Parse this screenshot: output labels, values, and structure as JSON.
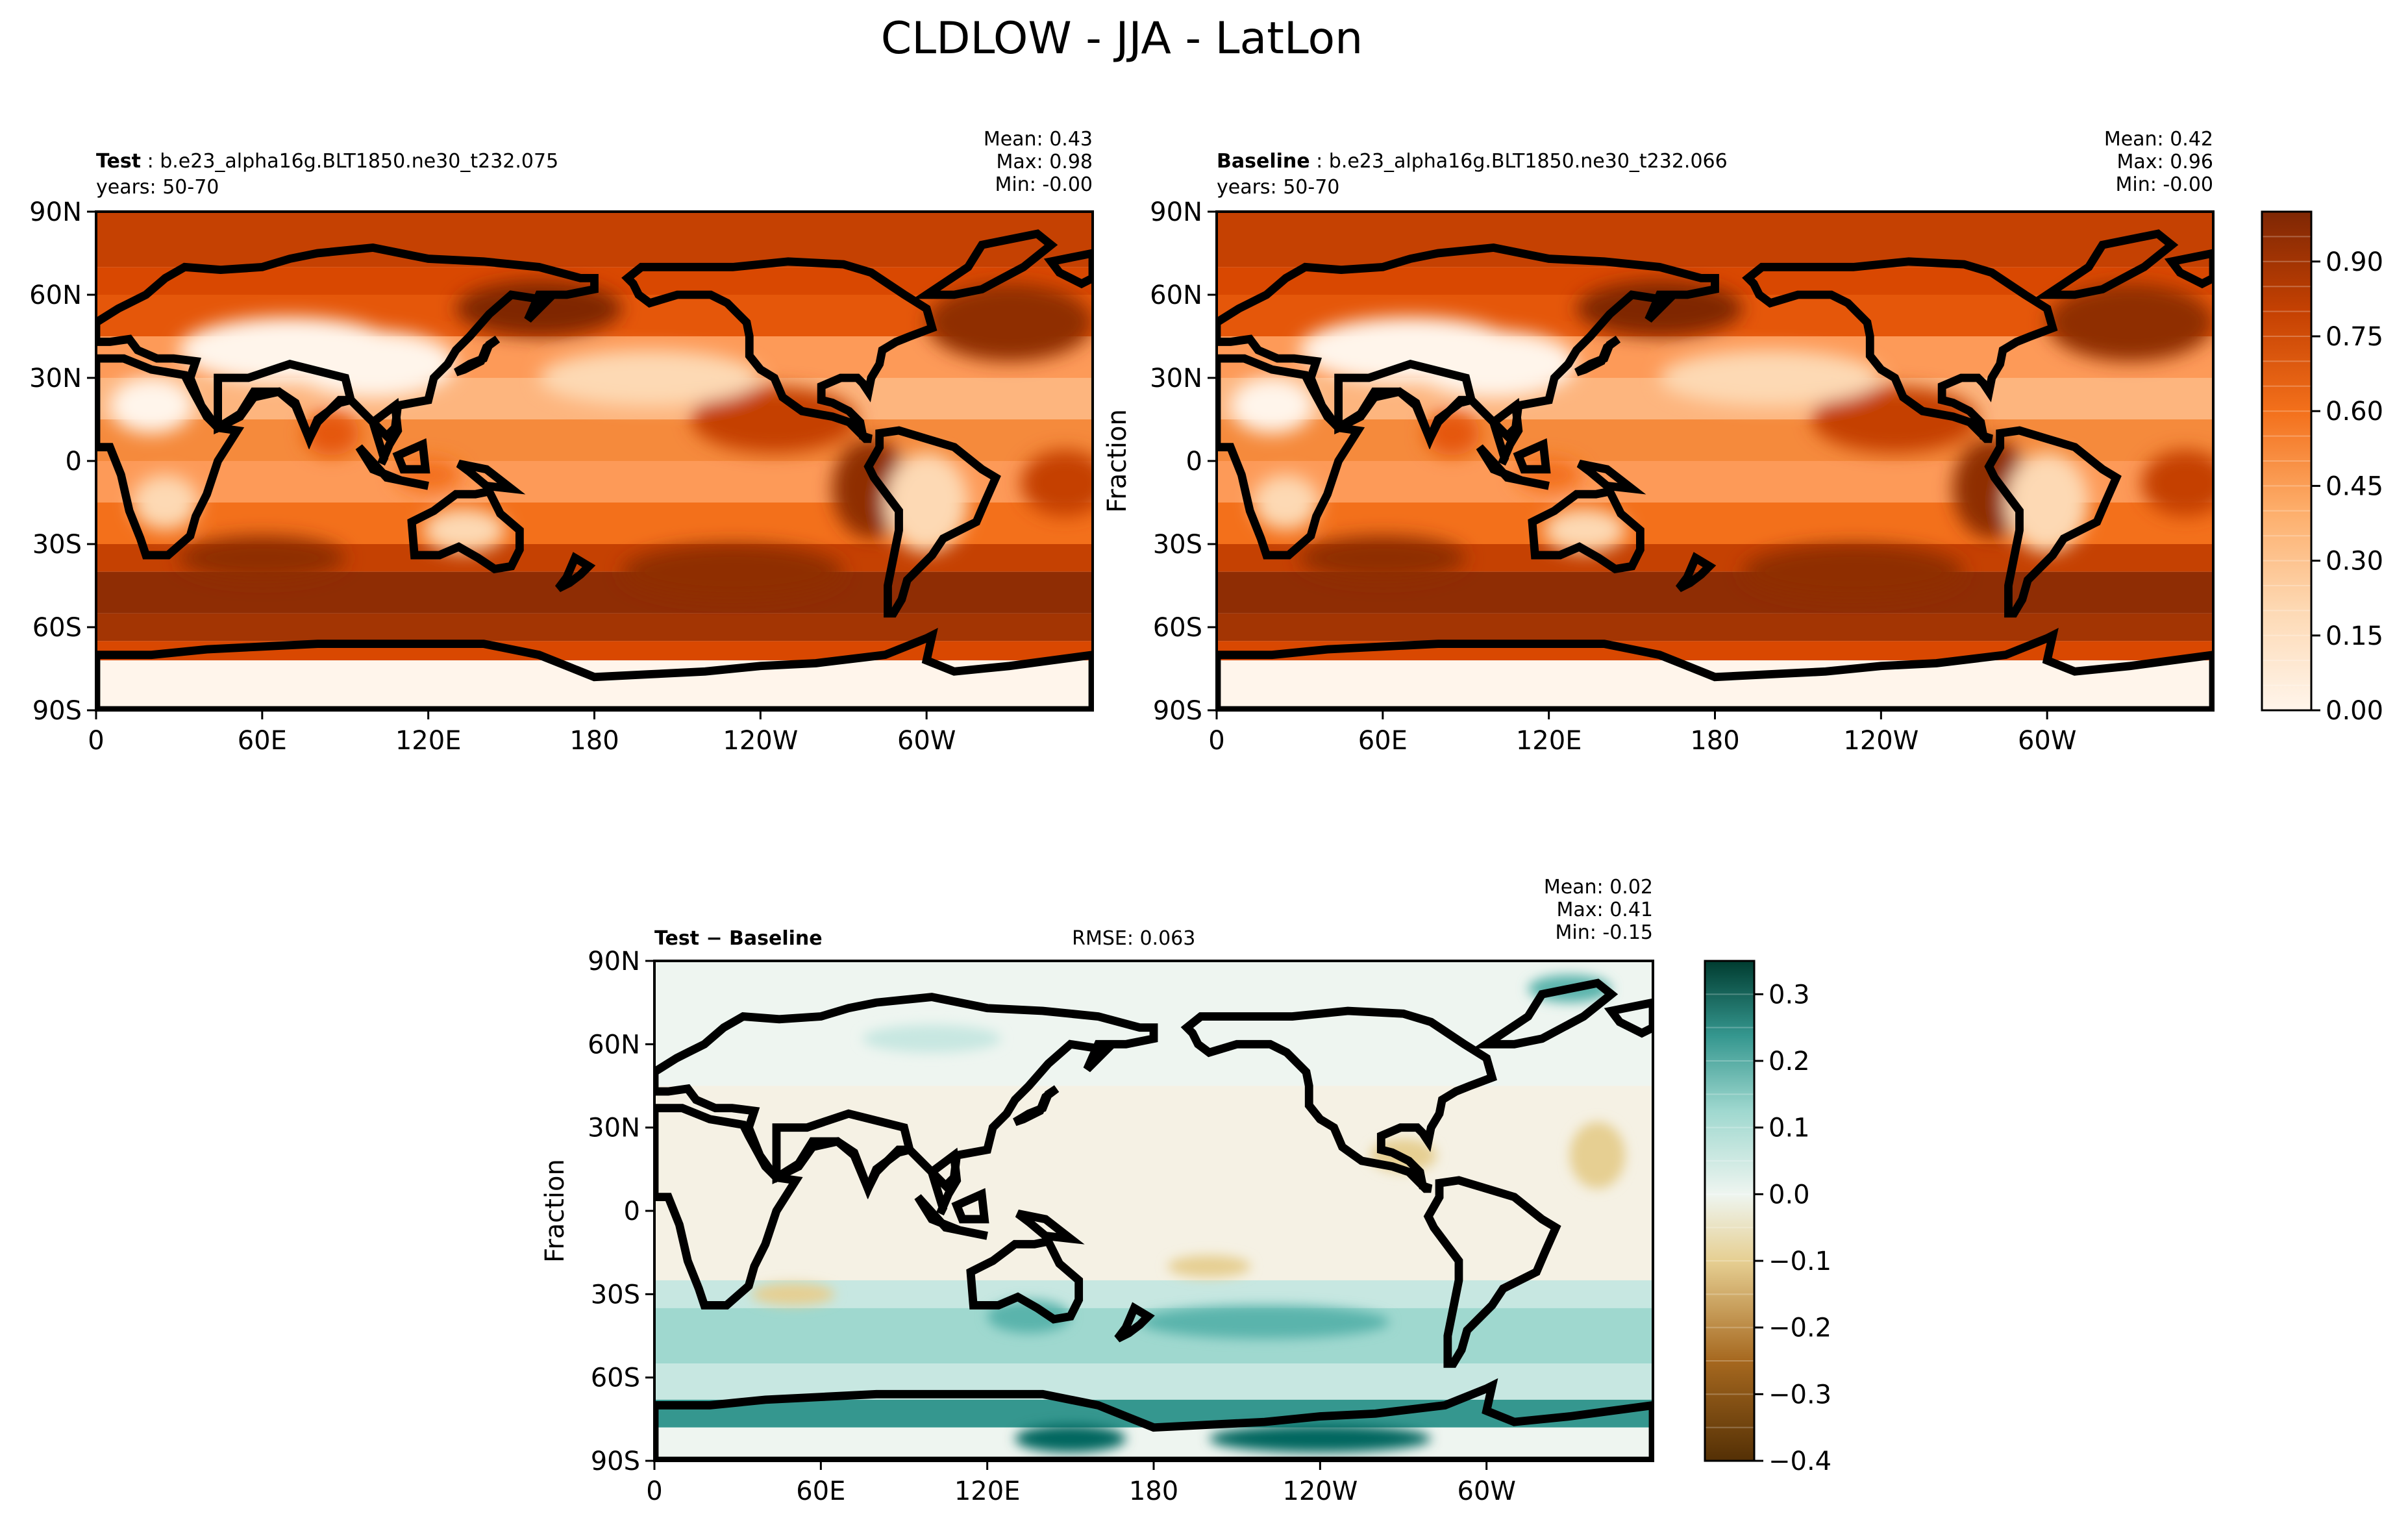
{
  "figure": {
    "title": "CLDLOW - JJA - LatLon"
  },
  "ticks": {
    "lon": [
      "0",
      "60E",
      "120E",
      "180",
      "120W",
      "60W"
    ],
    "lat": [
      "90N",
      "60N",
      "30N",
      "0",
      "30S",
      "60S",
      "90S"
    ]
  },
  "chart_data": [
    {
      "type": "heatmap",
      "panel": "test",
      "header_bold": "Test",
      "header_case": "b.e23_alpha16g.BLT1850.ne30_t232.075",
      "years": "years: 50-70",
      "stats": {
        "mean": "Mean:  0.43",
        "max": "Max:  0.98",
        "min": "Min: -0.00"
      },
      "ylabel": "",
      "xlim": [
        0,
        360
      ],
      "ylim": [
        -90,
        90
      ],
      "colormap": "Oranges",
      "value_range": [
        0,
        1
      ]
    },
    {
      "type": "heatmap",
      "panel": "baseline",
      "header_bold": "Baseline",
      "header_case": "b.e23_alpha16g.BLT1850.ne30_t232.066",
      "years": "years: 50-70",
      "stats": {
        "mean": "Mean:  0.42",
        "max": "Max:  0.96",
        "min": "Min: -0.00"
      },
      "ylabel": "Fraction",
      "xlim": [
        0,
        360
      ],
      "ylim": [
        -90,
        90
      ],
      "colormap": "Oranges",
      "value_range": [
        0,
        1
      ],
      "colorbar": {
        "range": [
          0,
          1
        ],
        "levels": 20,
        "ticks": [
          0.0,
          0.15,
          0.3,
          0.45,
          0.6,
          0.75,
          0.9
        ],
        "tick_labels": [
          "0.00",
          "0.15",
          "0.30",
          "0.45",
          "0.60",
          "0.75",
          "0.90"
        ]
      }
    },
    {
      "type": "heatmap",
      "panel": "diff",
      "header_bold": "Test − Baseline",
      "rmse": "RMSE: 0.063",
      "stats": {
        "mean": "Mean:  0.02",
        "max": "Max:  0.41",
        "min": "Min: -0.15"
      },
      "ylabel": "Fraction",
      "xlim": [
        0,
        360
      ],
      "ylim": [
        -90,
        90
      ],
      "colormap": "BrBG",
      "value_range": [
        -0.4,
        0.35
      ],
      "colorbar": {
        "range": [
          -0.4,
          0.35
        ],
        "levels": 15,
        "ticks": [
          -0.4,
          -0.3,
          -0.2,
          -0.1,
          0.0,
          0.1,
          0.2,
          0.3
        ],
        "tick_labels": [
          "−0.4",
          "−0.3",
          "−0.2",
          "−0.1",
          "0.0",
          "0.1",
          "0.2",
          "0.3"
        ]
      }
    }
  ],
  "colors": {
    "frame": "#000000",
    "coastline": "#000000",
    "oranges_low": "#fff5eb",
    "oranges_high": "#7f2704",
    "brbg_neg": "#543005",
    "brbg_mid": "#eef5f0",
    "brbg_pos": "#003c30"
  }
}
